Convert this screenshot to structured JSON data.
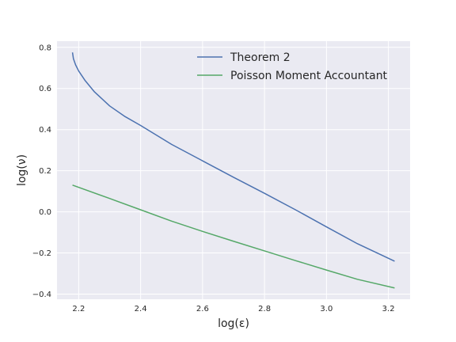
{
  "chart_data": {
    "type": "line",
    "title": "",
    "xlabel": "log(ε)",
    "ylabel": "log(ν)",
    "xlim": [
      2.13,
      3.27
    ],
    "ylim": [
      -0.425,
      0.83
    ],
    "xticks": [
      2.2,
      2.4,
      2.6,
      2.8,
      3.0,
      3.2
    ],
    "xtick_labels": [
      "2.2",
      "2.4",
      "2.6",
      "2.8",
      "3.0",
      "3.2"
    ],
    "yticks": [
      -0.4,
      -0.2,
      0.0,
      0.2,
      0.4,
      0.6,
      0.8
    ],
    "ytick_labels": [
      "−0.4",
      "−0.2",
      "0.0",
      "0.2",
      "0.4",
      "0.6",
      "0.8"
    ],
    "grid": true,
    "legend_position": "top-right",
    "series": [
      {
        "name": "Theorem 2",
        "color": "#4c72b0",
        "x": [
          2.18,
          2.183,
          2.19,
          2.2,
          2.22,
          2.25,
          2.3,
          2.35,
          2.4,
          2.5,
          2.6,
          2.7,
          2.8,
          2.9,
          3.0,
          3.1,
          3.22
        ],
        "y": [
          0.775,
          0.745,
          0.715,
          0.685,
          0.64,
          0.585,
          0.515,
          0.463,
          0.42,
          0.328,
          0.248,
          0.168,
          0.09,
          0.01,
          -0.073,
          -0.155,
          -0.24
        ]
      },
      {
        "name": "Poisson Moment Accountant",
        "color": "#55a868",
        "x": [
          2.18,
          2.3,
          2.4,
          2.5,
          2.6,
          2.7,
          2.8,
          2.9,
          3.0,
          3.1,
          3.22
        ],
        "y": [
          0.13,
          0.065,
          0.01,
          -0.045,
          -0.095,
          -0.143,
          -0.19,
          -0.237,
          -0.283,
          -0.328,
          -0.37
        ]
      }
    ]
  }
}
